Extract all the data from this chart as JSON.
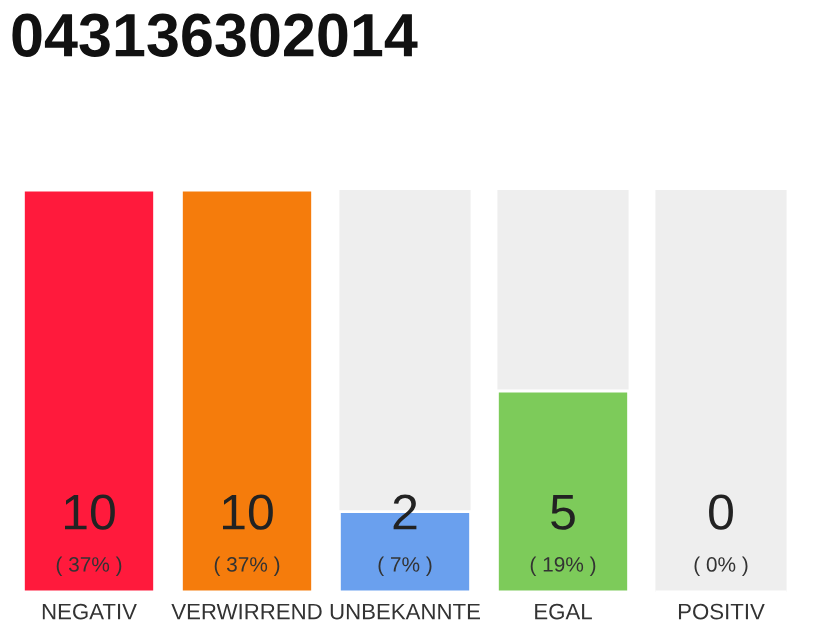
{
  "chart_data": {
    "type": "bar",
    "title": "043136302014",
    "categories": [
      "NEGATIV",
      "VERWIRREND",
      "UNBEKANNTE",
      "EGAL",
      "POSITIV"
    ],
    "values": [
      10,
      10,
      2,
      5,
      0
    ],
    "colors": [
      "#ff1a3c",
      "#f57c0c",
      "#6aa0ee",
      "#7dcb5a",
      null
    ],
    "annotations": [
      "( 37% )",
      "( 37% )",
      "( 7% )",
      "( 19% )",
      "( 0% )"
    ],
    "tick_labels": "x",
    "grid": false,
    "legend": false,
    "data_labels": true
  }
}
